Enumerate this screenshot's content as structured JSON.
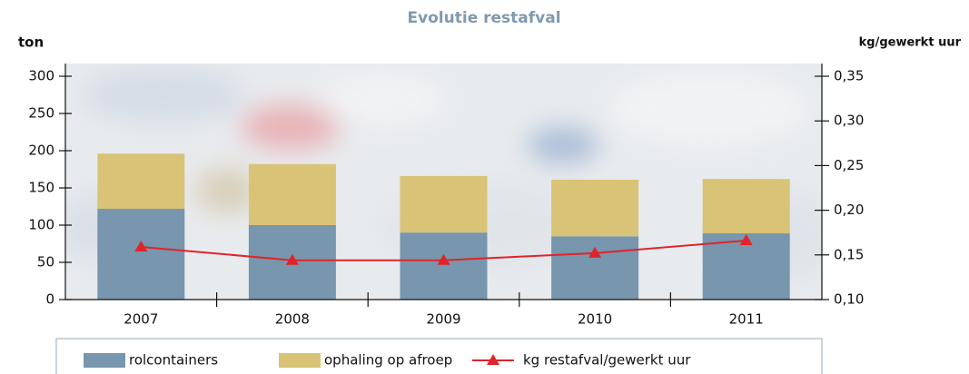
{
  "chart_data": {
    "type": "bar-line",
    "title": "Evolutie restafval",
    "y_label": "ton",
    "y2_label": "kg/gewerkt uur",
    "categories": [
      "2007",
      "2008",
      "2009",
      "2010",
      "2011"
    ],
    "series": [
      {
        "name": "rolcontainers",
        "color": "#7896ad",
        "type": "bar",
        "values": [
          122,
          100,
          90,
          85,
          89
        ]
      },
      {
        "name": "ophaling op afroep",
        "color": "#d9c376",
        "type": "bar",
        "values": [
          74,
          82,
          76,
          76,
          73
        ]
      },
      {
        "name": "kg restafval/gewerkt uur",
        "color": "#e0242b",
        "type": "line",
        "axis": "y2",
        "values": [
          0.159,
          0.144,
          0.144,
          0.152,
          0.166
        ]
      }
    ],
    "stacked": true,
    "ylim": [
      0,
      300
    ],
    "yticks": [
      0,
      50,
      100,
      150,
      200,
      250,
      300
    ],
    "y2lim": [
      0.1,
      0.35
    ],
    "y2ticks": [
      {
        "value": 0.1,
        "label": "0,10"
      },
      {
        "value": 0.15,
        "label": "0,15"
      },
      {
        "value": 0.2,
        "label": "0,20"
      },
      {
        "value": 0.25,
        "label": "0,25"
      },
      {
        "value": 0.3,
        "label": "0,30"
      },
      {
        "value": 0.35,
        "label": "0,35"
      }
    ]
  }
}
